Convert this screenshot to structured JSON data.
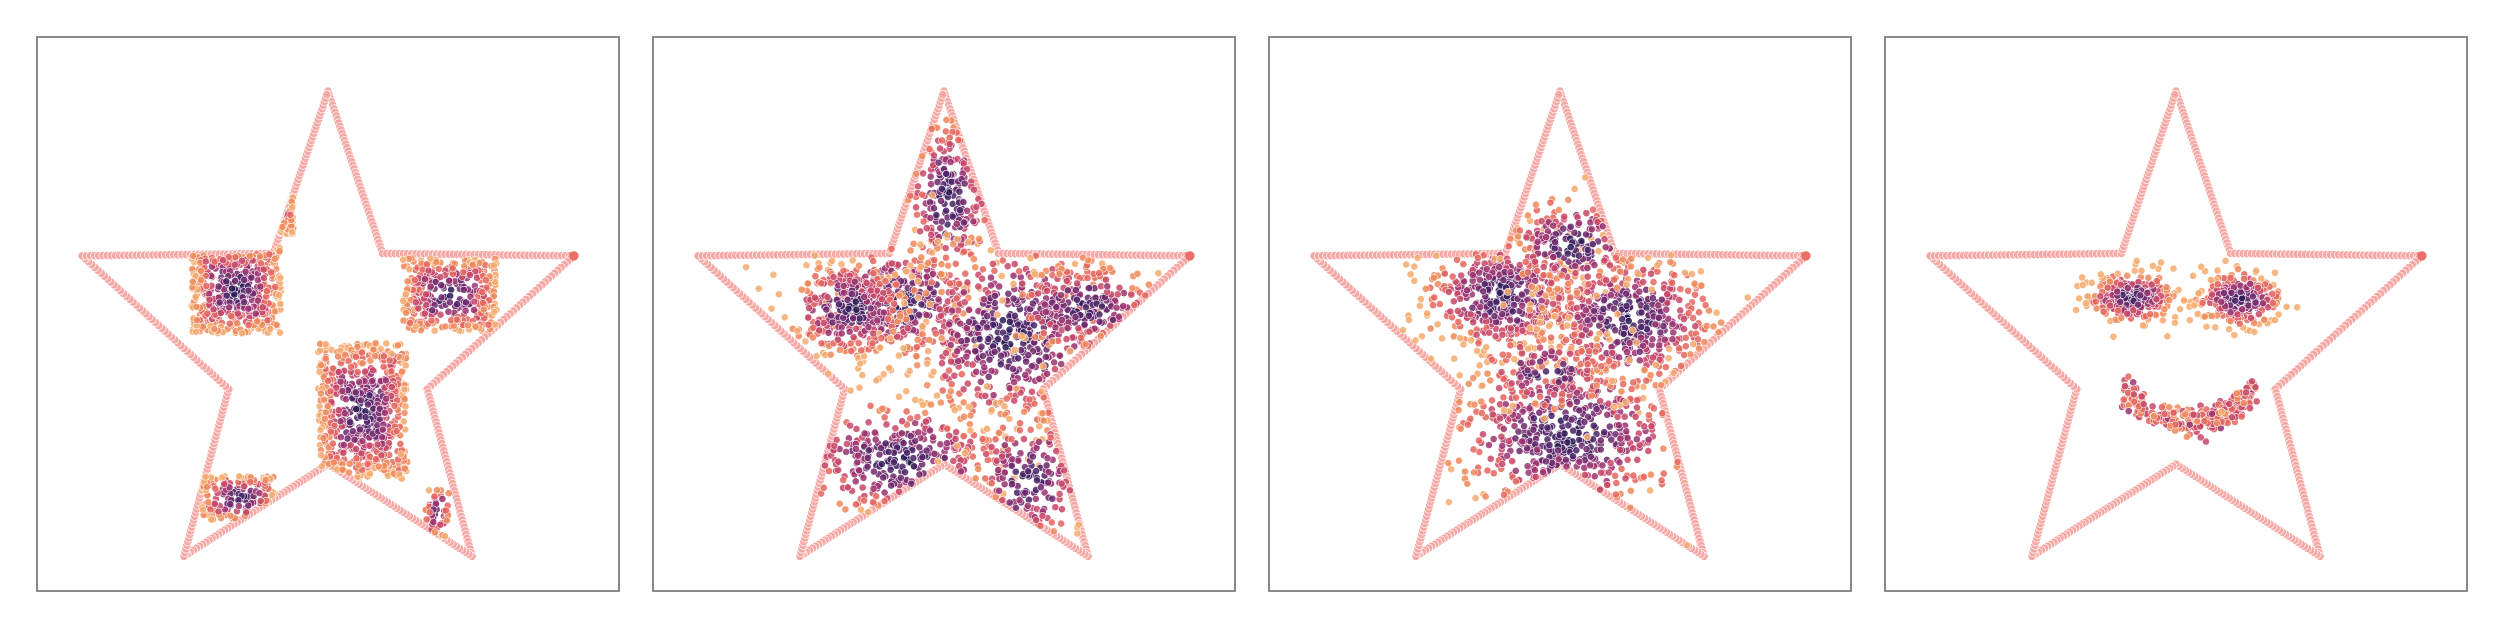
{
  "chart_data": [
    {
      "type": "scatter",
      "panel": "checkerboard",
      "boundary": "star",
      "xlim": [
        -1,
        1
      ],
      "ylim": [
        -1,
        1
      ],
      "grid": false,
      "ticks": false,
      "clusters": [
        {
          "x": -0.2,
          "y": 0.55,
          "sx": 0.06,
          "sy": 0.22,
          "n": 150,
          "shape": "box"
        },
        {
          "x": -0.37,
          "y": 0.1,
          "sx": 0.18,
          "sy": 0.18,
          "n": 480,
          "shape": "box"
        },
        {
          "x": 0.49,
          "y": 0.08,
          "sx": 0.19,
          "sy": 0.15,
          "n": 340,
          "shape": "box"
        },
        {
          "x": 0.14,
          "y": -0.4,
          "sx": 0.18,
          "sy": 0.28,
          "n": 620,
          "shape": "box"
        },
        {
          "x": -0.36,
          "y": -0.76,
          "sx": 0.15,
          "sy": 0.09,
          "n": 150,
          "shape": "box"
        },
        {
          "x": 0.44,
          "y": -0.82,
          "sx": 0.05,
          "sy": 0.1,
          "n": 50,
          "shape": "box"
        }
      ]
    },
    {
      "type": "scatter",
      "panel": "star-fill",
      "boundary": "star",
      "xlim": [
        -1,
        1
      ],
      "ylim": [
        -1,
        1
      ],
      "grid": false,
      "ticks": false,
      "clusters": [
        {
          "x": -0.17,
          "y": 0.05,
          "sx": 0.17,
          "sy": 0.12,
          "n": 360
        },
        {
          "x": 0.02,
          "y": 0.48,
          "sx": 0.09,
          "sy": 0.17,
          "n": 220
        },
        {
          "x": 0.27,
          "y": -0.08,
          "sx": 0.22,
          "sy": 0.2,
          "n": 520
        },
        {
          "x": -0.18,
          "y": -0.6,
          "sx": 0.22,
          "sy": 0.12,
          "n": 300
        },
        {
          "x": 0.34,
          "y": -0.68,
          "sx": 0.12,
          "sy": 0.14,
          "n": 170
        },
        {
          "x": 0.56,
          "y": 0.03,
          "sx": 0.15,
          "sy": 0.09,
          "n": 210
        },
        {
          "x": -0.38,
          "y": 0.02,
          "sx": 0.12,
          "sy": 0.1,
          "n": 300
        }
      ]
    },
    {
      "type": "scatter",
      "panel": "blobs",
      "boundary": "star",
      "xlim": [
        -1,
        1
      ],
      "ylim": [
        -1,
        1
      ],
      "grid": false,
      "ticks": false,
      "clusters": [
        {
          "x": -0.23,
          "y": 0.08,
          "sx": 0.16,
          "sy": 0.12,
          "n": 480
        },
        {
          "x": 0.28,
          "y": -0.02,
          "sx": 0.18,
          "sy": 0.14,
          "n": 460
        },
        {
          "x": 0.05,
          "y": 0.28,
          "sx": 0.14,
          "sy": 0.1,
          "n": 180
        },
        {
          "x": 0.03,
          "y": -0.5,
          "sx": 0.25,
          "sy": 0.17,
          "n": 520
        },
        {
          "x": -0.05,
          "y": -0.24,
          "sx": 0.14,
          "sy": 0.08,
          "n": 140
        }
      ]
    },
    {
      "type": "scatter",
      "panel": "smiley",
      "boundary": "star",
      "xlim": [
        -1,
        1
      ],
      "ylim": [
        -1,
        1
      ],
      "grid": false,
      "ticks": false,
      "clusters": [
        {
          "x": -0.18,
          "y": 0.07,
          "sx": 0.085,
          "sy": 0.05,
          "n": 300
        },
        {
          "x": 0.26,
          "y": 0.06,
          "sx": 0.085,
          "sy": 0.055,
          "n": 300
        },
        {
          "x": 0.05,
          "y": -0.5,
          "sx": 0.025,
          "sy": 0.025,
          "n": 320,
          "shape": "arc",
          "rx": 0.26,
          "ry": 0.2,
          "cy": -0.25
        }
      ]
    }
  ],
  "style": {
    "boundary_color": "#f7a8a5",
    "boundary_edge": "#e86e68",
    "palette": [
      "#2b1b55",
      "#4a2466",
      "#6f2a6d",
      "#9b3370",
      "#c84868",
      "#e5675e",
      "#f08a5c",
      "#f5ab6f"
    ],
    "frame_color": "#8a8a8a"
  }
}
